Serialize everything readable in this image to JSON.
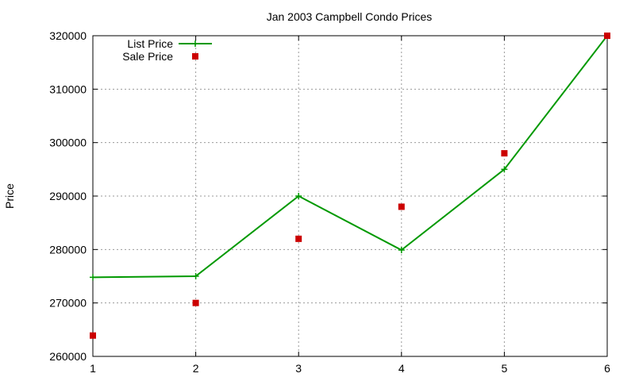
{
  "chart_data": {
    "type": "line",
    "title": "Jan 2003 Campbell Condo Prices",
    "xlabel": "",
    "ylabel": "Price",
    "xlim": [
      1,
      6
    ],
    "ylim": [
      260000,
      320000
    ],
    "xticks": [
      "1",
      "2",
      "3",
      "4",
      "5",
      "6"
    ],
    "yticks": [
      "260000",
      "270000",
      "280000",
      "290000",
      "300000",
      "310000",
      "320000"
    ],
    "grid": true,
    "legend_position": "top-left",
    "series": [
      {
        "name": "List Price",
        "style": "line+cross",
        "color": "#009900",
        "x": [
          1,
          2,
          3,
          4,
          5,
          6
        ],
        "y": [
          274800,
          275000,
          290000,
          279900,
          295000,
          320000
        ]
      },
      {
        "name": "Sale Price",
        "style": "square-points",
        "color": "#cc0000",
        "x": [
          1,
          2,
          3,
          4,
          5,
          6
        ],
        "y": [
          263900,
          270000,
          282000,
          288000,
          298000,
          320000
        ]
      }
    ]
  }
}
